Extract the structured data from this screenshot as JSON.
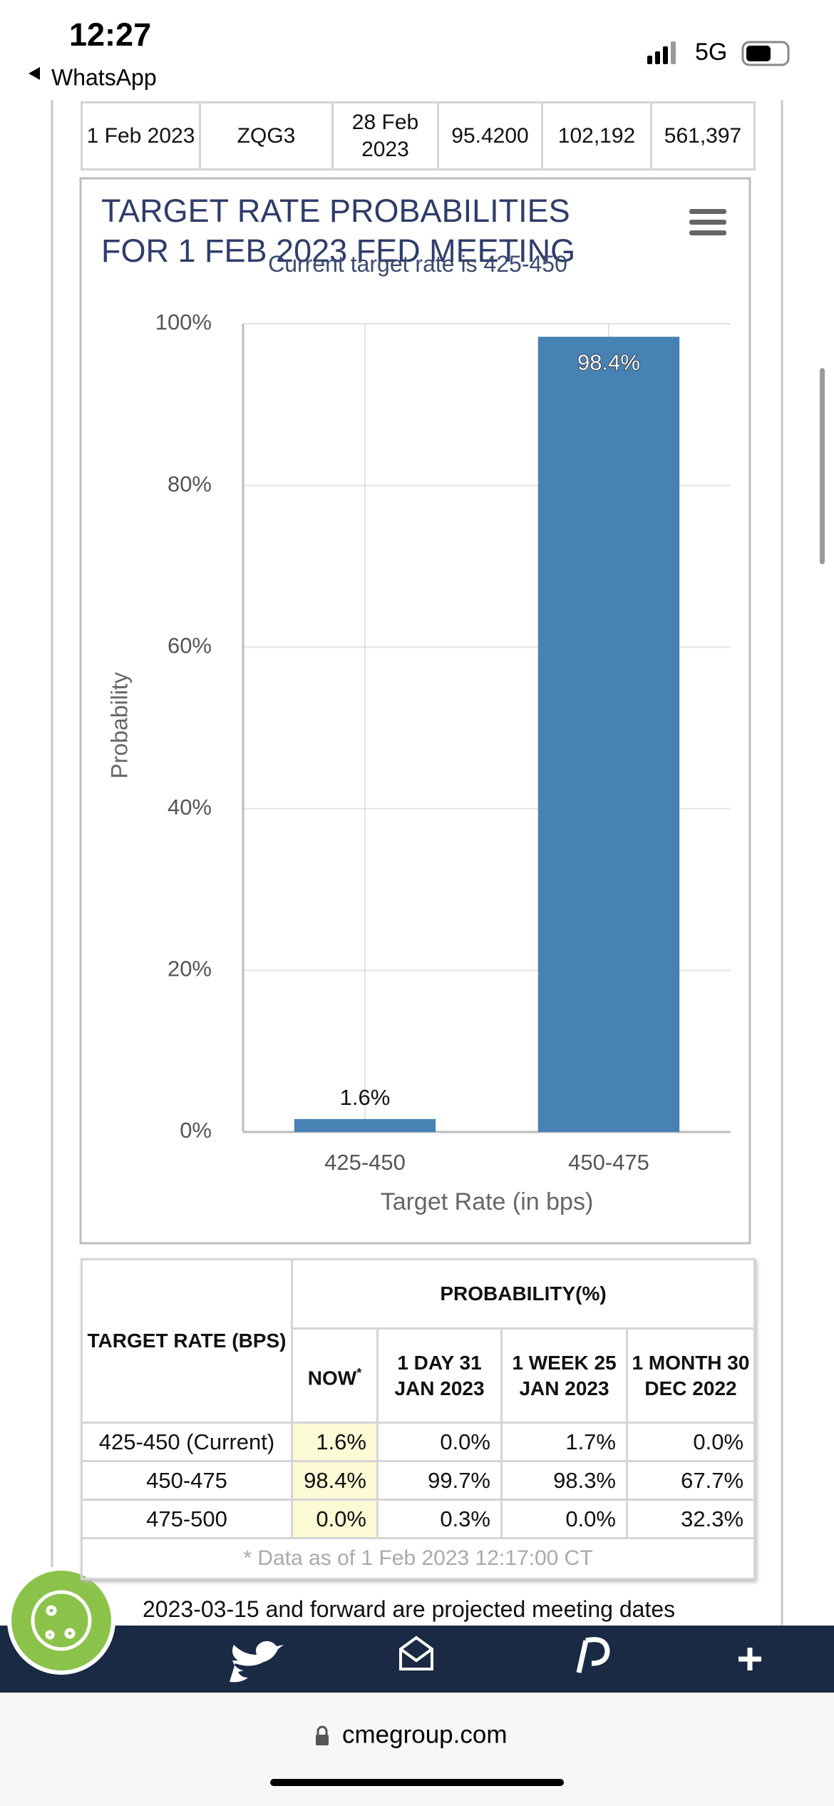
{
  "status_bar": {
    "time": "12:27",
    "back": "WhatsApp",
    "network": "5G"
  },
  "top_table": {
    "rows": [
      [
        "1 Feb 2023",
        "ZQG3",
        "28 Feb 2023",
        "95.4200",
        "102,192",
        "561,397"
      ]
    ]
  },
  "chart_data": {
    "type": "bar",
    "title": "TARGET RATE PROBABILITIES FOR 1 FEB 2023 FED MEETING",
    "subtitle": "Current target rate is 425-450",
    "x_label": "Target Rate (in bps)",
    "y_label": "Probability",
    "categories": [
      "425-450",
      "450-475"
    ],
    "values": [
      1.6,
      98.4
    ],
    "value_labels": [
      "1.6%",
      "98.4%"
    ],
    "color": "#4682b4",
    "ylim": [
      0,
      100
    ],
    "yticks": [
      {
        "value": 0,
        "label": "0%"
      },
      {
        "value": 20,
        "label": "20%"
      },
      {
        "value": 40,
        "label": "40%"
      },
      {
        "value": 60,
        "label": "60%"
      },
      {
        "value": 80,
        "label": "80%"
      },
      {
        "value": 100,
        "label": "100%"
      }
    ],
    "grid": true
  },
  "prob_table": {
    "header": {
      "target_rate": "TARGET RATE (BPS)",
      "probability": "PROBABILITY(%)",
      "columns": [
        "NOW",
        "1 DAY 31 JAN 2023",
        "1 WEEK 25 JAN 2023",
        "1 MONTH 30 DEC 2022"
      ],
      "now_mark": "*"
    },
    "rows": [
      [
        "425-450 (Current)",
        "1.6%",
        "0.0%",
        "1.7%",
        "0.0%"
      ],
      [
        "450-475",
        "98.4%",
        "99.7%",
        "98.3%",
        "67.7%"
      ],
      [
        "475-500",
        "0.0%",
        "0.3%",
        "0.0%",
        "32.3%"
      ]
    ],
    "footnote": "* Data as of 1 Feb 2023 12:17:00 CT"
  },
  "projected_note": "2023-03-15 and forward are projected meeting dates",
  "url": "cmegroup.com"
}
